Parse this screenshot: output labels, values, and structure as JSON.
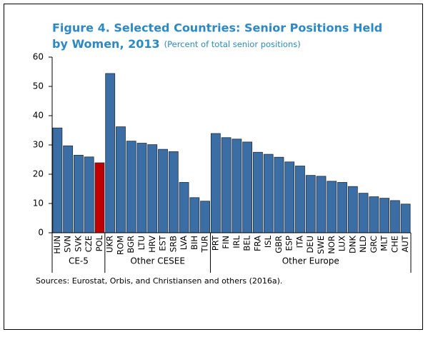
{
  "chart_data": {
    "type": "bar",
    "title": [
      "Figure 4. Selected Countries: Senior Positions Held",
      "by Women, 2013"
    ],
    "subtitle": "(Percent of total senior positions)",
    "categories": [
      "HUN",
      "SVN",
      "SVK",
      "CZE",
      "POL",
      "UKR",
      "ROM",
      "BGR",
      "LTU",
      "HRV",
      "EST",
      "SRB",
      "LVA",
      "BIH",
      "TUR",
      "PRT",
      "FIN",
      "IRL",
      "BEL",
      "FRA",
      "ISL",
      "GBR",
      "ESP",
      "ITA",
      "DEU",
      "SWE",
      "NOR",
      "LUX",
      "DNK",
      "NLD",
      "GRC",
      "MLT",
      "CHE",
      "AUT"
    ],
    "values": [
      35.8,
      29.7,
      26.5,
      25.9,
      23.9,
      54.4,
      36.2,
      31.3,
      30.6,
      30.1,
      28.5,
      27.7,
      17.2,
      12.0,
      10.8,
      33.9,
      32.5,
      32.0,
      31.0,
      27.5,
      26.8,
      25.8,
      24.2,
      22.8,
      19.6,
      19.3,
      17.6,
      17.2,
      15.8,
      13.5,
      12.3,
      11.8,
      11.0,
      9.8
    ],
    "colors": [
      "#3b6ea5",
      "#3b6ea5",
      "#3b6ea5",
      "#3b6ea5",
      "#c00000",
      "#3b6ea5",
      "#3b6ea5",
      "#3b6ea5",
      "#3b6ea5",
      "#3b6ea5",
      "#3b6ea5",
      "#3b6ea5",
      "#3b6ea5",
      "#3b6ea5",
      "#3b6ea5",
      "#3b6ea5",
      "#3b6ea5",
      "#3b6ea5",
      "#3b6ea5",
      "#3b6ea5",
      "#3b6ea5",
      "#3b6ea5",
      "#3b6ea5",
      "#3b6ea5",
      "#3b6ea5",
      "#3b6ea5",
      "#3b6ea5",
      "#3b6ea5",
      "#3b6ea5",
      "#3b6ea5",
      "#3b6ea5",
      "#3b6ea5",
      "#3b6ea5",
      "#3b6ea5"
    ],
    "groups": [
      {
        "name": "CE-5",
        "size": 5
      },
      {
        "name": "Other CESEE",
        "size": 10
      },
      {
        "name": "Other Europe",
        "size": 19
      }
    ],
    "ylim": [
      0,
      60
    ],
    "yticks": [
      0,
      10,
      20,
      30,
      40,
      50,
      60
    ],
    "source": "Sources: Eurostat, Orbis, and Christiansen and others (2016a)."
  }
}
